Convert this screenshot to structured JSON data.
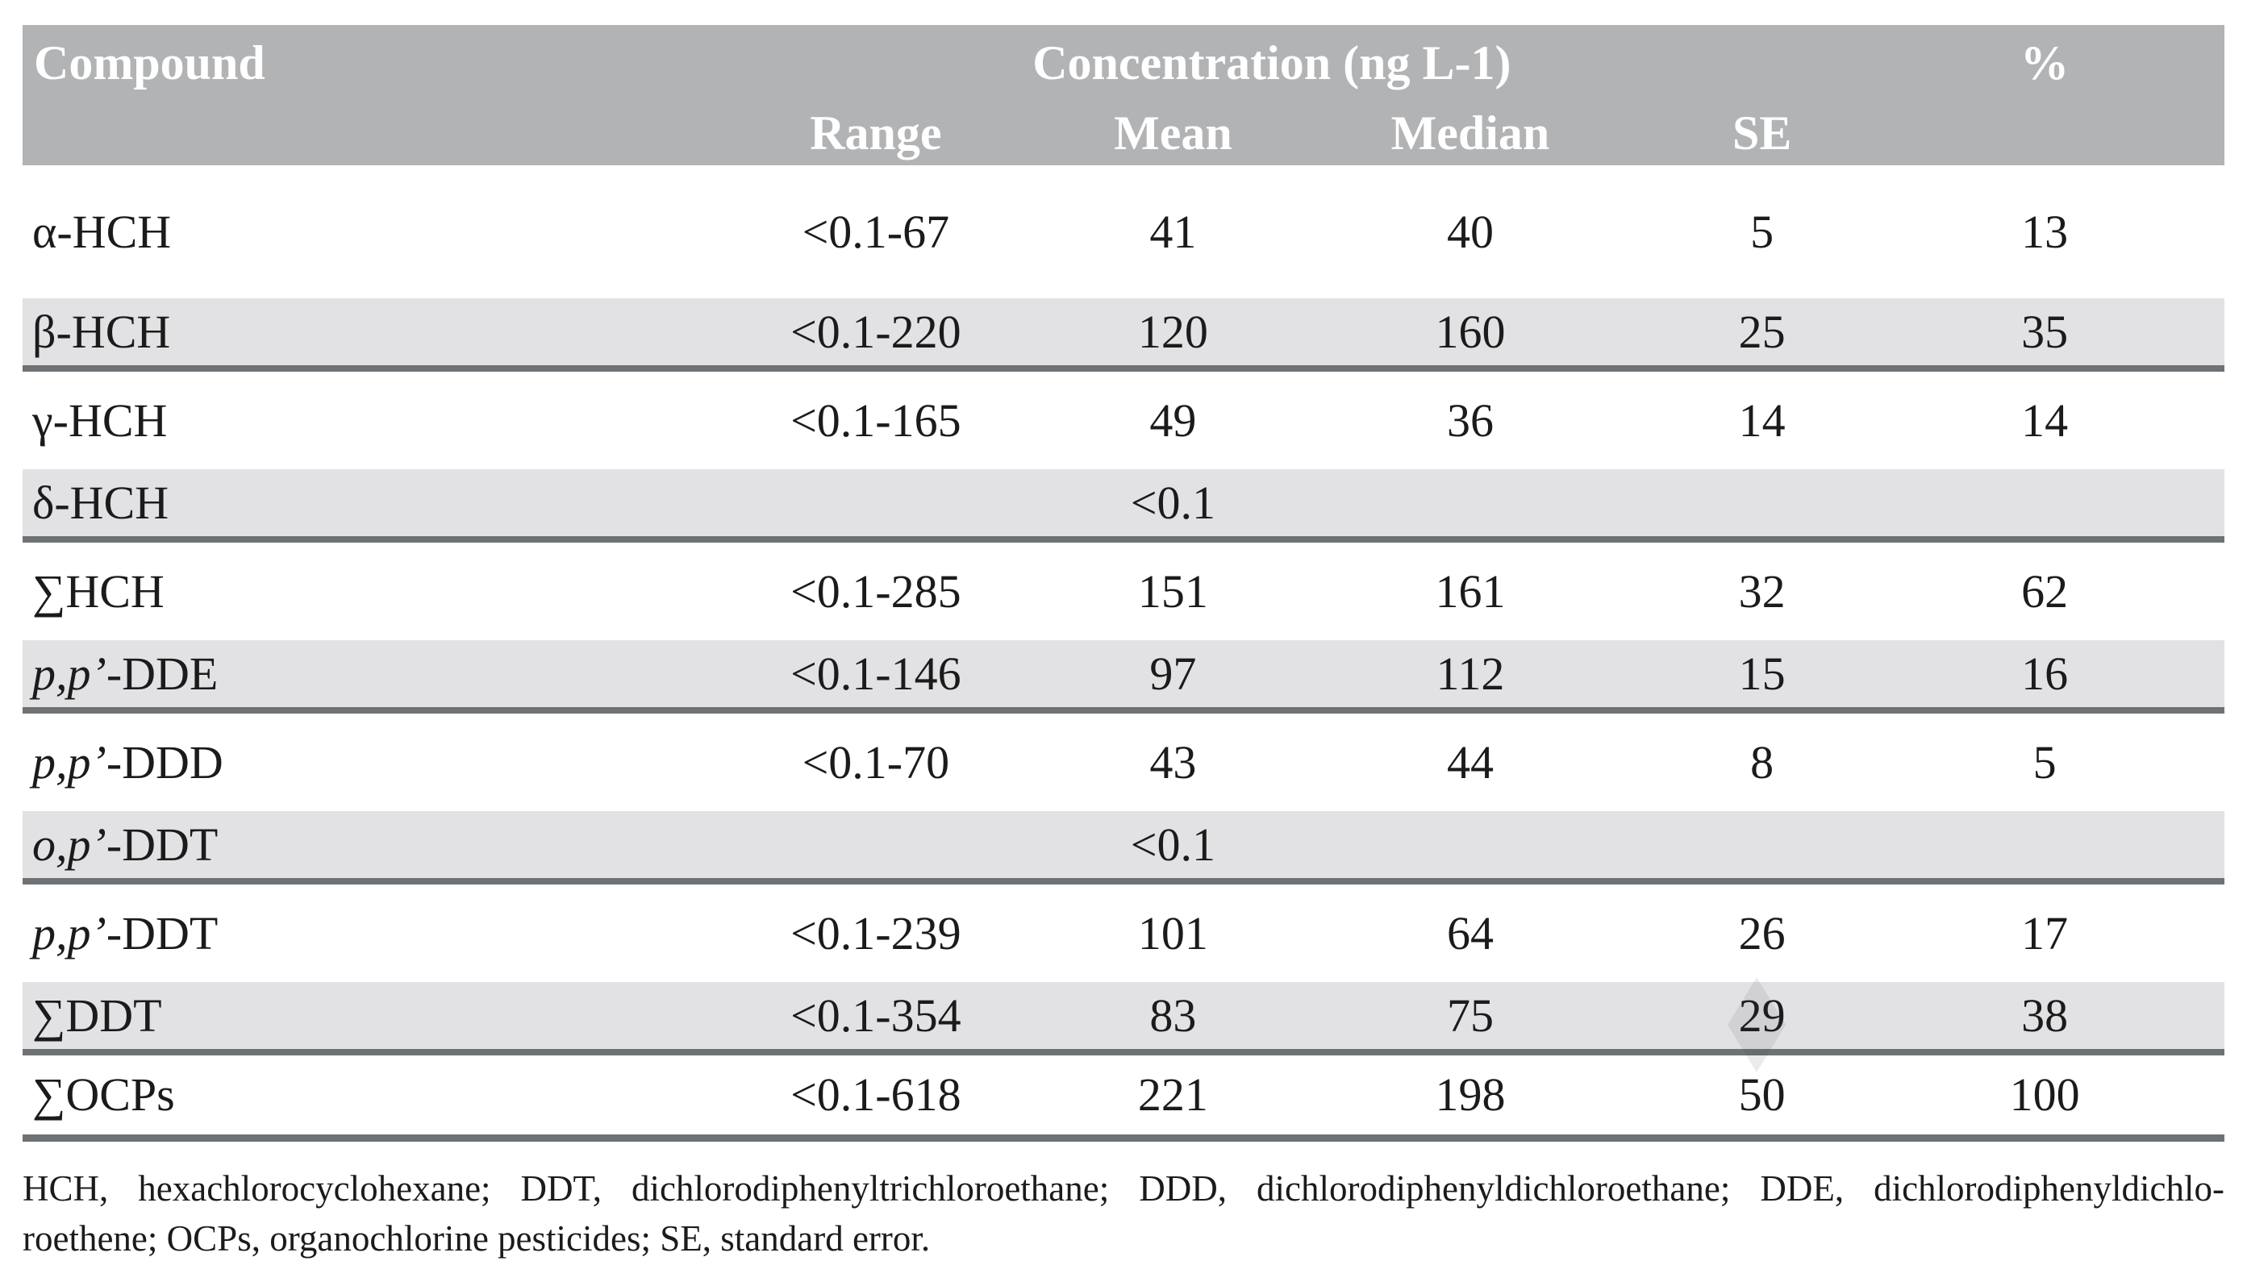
{
  "colors": {
    "header_bg": "#b1b3b5",
    "row_shade": "#e2e2e4",
    "rule": "#6f7274",
    "text": "#1b1b1b",
    "header_text": "#ffffff"
  },
  "table": {
    "header": {
      "compound": "Compound",
      "concentration_group": "Concentration (ng L-1)",
      "percent": "%",
      "sub_range": "Range",
      "sub_mean": "Mean",
      "sub_median": "Median",
      "sub_se": "SE"
    },
    "rows": [
      {
        "compound": {
          "italic": "",
          "text": "α-HCH"
        },
        "range": "<0.1-67",
        "mean": "41",
        "median": "40",
        "se": "5",
        "pct": "13",
        "shaded": false
      },
      {
        "compound": {
          "italic": "",
          "text": "β-HCH"
        },
        "range": "<0.1-220",
        "mean": "120",
        "median": "160",
        "se": "25",
        "pct": "35",
        "shaded": true
      },
      {
        "compound": {
          "italic": "",
          "text": "γ-HCH"
        },
        "range": "<0.1-165",
        "mean": "49",
        "median": "36",
        "se": "14",
        "pct": "14",
        "shaded": false
      },
      {
        "compound": {
          "italic": "",
          "text": "δ-HCH"
        },
        "range": "",
        "mean": "<0.1",
        "median": "",
        "se": "",
        "pct": "",
        "shaded": true
      },
      {
        "compound": {
          "italic": "",
          "text": "∑HCH"
        },
        "range": "<0.1-285",
        "mean": "151",
        "median": "161",
        "se": "32",
        "pct": "62",
        "shaded": false
      },
      {
        "compound": {
          "italic": "p,p’",
          "text": "-DDE"
        },
        "range": "<0.1-146",
        "mean": "97",
        "median": "112",
        "se": "15",
        "pct": "16",
        "shaded": true
      },
      {
        "compound": {
          "italic": "p,p’",
          "text": "-DDD"
        },
        "range": "<0.1-70",
        "mean": "43",
        "median": "44",
        "se": "8",
        "pct": "5",
        "shaded": false
      },
      {
        "compound": {
          "italic": "o,p’",
          "text": "-DDT"
        },
        "range": "",
        "mean": "<0.1",
        "median": "",
        "se": "",
        "pct": "",
        "shaded": true
      },
      {
        "compound": {
          "italic": "p,p’",
          "text": "-DDT"
        },
        "range": "<0.1-239",
        "mean": "101",
        "median": "64",
        "se": "26",
        "pct": "17",
        "shaded": false
      },
      {
        "compound": {
          "italic": "",
          "text": "∑DDT"
        },
        "range": "<0.1-354",
        "mean": "83",
        "median": "75",
        "se": "29",
        "pct": "38",
        "shaded": true
      },
      {
        "compound": {
          "italic": "",
          "text": "∑OCPs"
        },
        "range": "<0.1-618",
        "mean": "221",
        "median": "198",
        "se": "50",
        "pct": "100",
        "shaded": false
      }
    ]
  },
  "footnote": {
    "line1": "HCH, hexachlorocyclohexane; DDT, dichlorodiphenyltrichloroethane; DDD, dichlorodiphenyldichloroethane; DDE, dichlorodiphenyldichlo-",
    "line2": "roethene; OCPs, organochlorine pesticides; SE, standard error."
  }
}
